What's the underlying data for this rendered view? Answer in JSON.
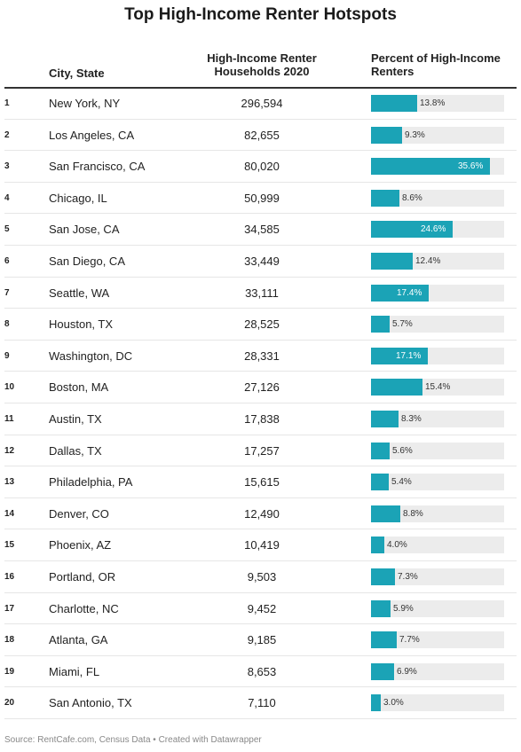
{
  "title": "Top High-Income Renter Hotspots",
  "headers": {
    "city": "City, State",
    "count": "High-Income Renter Households 2020",
    "percent": "Percent of High-Income Renters"
  },
  "source": "Source: RentCafe.com, Census Data • Created with Datawrapper",
  "colors": {
    "bar": "#1ba3b6",
    "track": "#ececec"
  },
  "chart_data": {
    "type": "table",
    "title": "Top High-Income Renter Hotspots",
    "columns": [
      "",
      "City, State",
      "High-Income Renter Households 2020",
      "Percent of High-Income Renters"
    ],
    "bar_max": 40,
    "rows": [
      {
        "rank": "1",
        "city": "New York, NY",
        "count": "296,594",
        "percent": 13.8,
        "percent_label": "13.8%"
      },
      {
        "rank": "2",
        "city": "Los Angeles, CA",
        "count": "82,655",
        "percent": 9.3,
        "percent_label": "9.3%"
      },
      {
        "rank": "3",
        "city": "San Francisco, CA",
        "count": "80,020",
        "percent": 35.6,
        "percent_label": "35.6%"
      },
      {
        "rank": "4",
        "city": "Chicago, IL",
        "count": "50,999",
        "percent": 8.6,
        "percent_label": "8.6%"
      },
      {
        "rank": "5",
        "city": "San Jose, CA",
        "count": "34,585",
        "percent": 24.6,
        "percent_label": "24.6%"
      },
      {
        "rank": "6",
        "city": "San Diego, CA",
        "count": "33,449",
        "percent": 12.4,
        "percent_label": "12.4%"
      },
      {
        "rank": "7",
        "city": "Seattle, WA",
        "count": "33,111",
        "percent": 17.4,
        "percent_label": "17.4%"
      },
      {
        "rank": "8",
        "city": "Houston, TX",
        "count": "28,525",
        "percent": 5.7,
        "percent_label": "5.7%"
      },
      {
        "rank": "9",
        "city": "Washington, DC",
        "count": "28,331",
        "percent": 17.1,
        "percent_label": "17.1%"
      },
      {
        "rank": "10",
        "city": "Boston, MA",
        "count": "27,126",
        "percent": 15.4,
        "percent_label": "15.4%"
      },
      {
        "rank": "11",
        "city": "Austin, TX",
        "count": "17,838",
        "percent": 8.3,
        "percent_label": "8.3%"
      },
      {
        "rank": "12",
        "city": "Dallas, TX",
        "count": "17,257",
        "percent": 5.6,
        "percent_label": "5.6%"
      },
      {
        "rank": "13",
        "city": "Philadelphia, PA",
        "count": "15,615",
        "percent": 5.4,
        "percent_label": "5.4%"
      },
      {
        "rank": "14",
        "city": "Denver, CO",
        "count": "12,490",
        "percent": 8.8,
        "percent_label": "8.8%"
      },
      {
        "rank": "15",
        "city": "Phoenix, AZ",
        "count": "10,419",
        "percent": 4.0,
        "percent_label": "4.0%"
      },
      {
        "rank": "16",
        "city": "Portland, OR",
        "count": "9,503",
        "percent": 7.3,
        "percent_label": "7.3%"
      },
      {
        "rank": "17",
        "city": "Charlotte, NC",
        "count": "9,452",
        "percent": 5.9,
        "percent_label": "5.9%"
      },
      {
        "rank": "18",
        "city": "Atlanta, GA",
        "count": "9,185",
        "percent": 7.7,
        "percent_label": "7.7%"
      },
      {
        "rank": "19",
        "city": "Miami, FL",
        "count": "8,653",
        "percent": 6.9,
        "percent_label": "6.9%"
      },
      {
        "rank": "20",
        "city": "San Antonio, TX",
        "count": "7,110",
        "percent": 3.0,
        "percent_label": "3.0%"
      }
    ]
  }
}
